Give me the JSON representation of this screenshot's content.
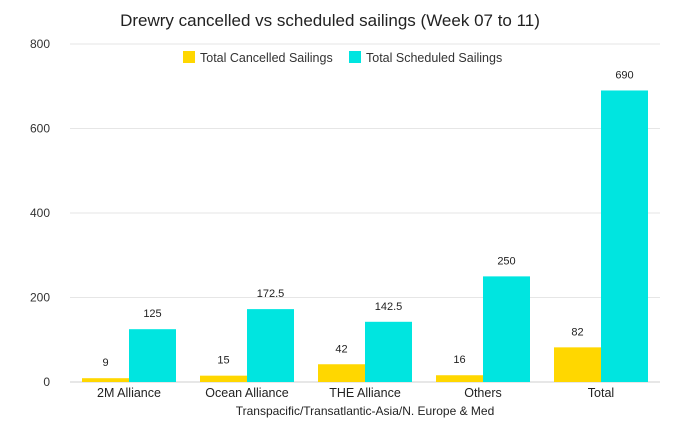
{
  "chart_data": {
    "type": "bar",
    "title": "Drewry cancelled vs scheduled sailings (Week 07 to 11)",
    "xlabel": "Transpacific/Transatlantic-Asia/N. Europe & Med",
    "ylabel": "",
    "categories": [
      "2M Alliance",
      "Ocean Alliance",
      "THE Alliance",
      "Others",
      "Total"
    ],
    "series": [
      {
        "name": "Total Cancelled Sailings",
        "color": "#FFD700",
        "values": [
          9,
          15,
          42,
          16,
          82
        ],
        "labels": [
          "9",
          "15",
          "42",
          "16",
          "82"
        ]
      },
      {
        "name": "Total Scheduled Sailings",
        "color": "#00E5E0",
        "values": [
          125,
          172.5,
          142.5,
          250,
          690
        ],
        "labels": [
          "125",
          "172.5",
          "142.5",
          "250",
          "690"
        ]
      }
    ],
    "ylim": [
      0,
      800
    ],
    "yticks": [
      "0",
      "200",
      "400",
      "600",
      "800"
    ],
    "legend_position": "top-center",
    "grid": true
  }
}
